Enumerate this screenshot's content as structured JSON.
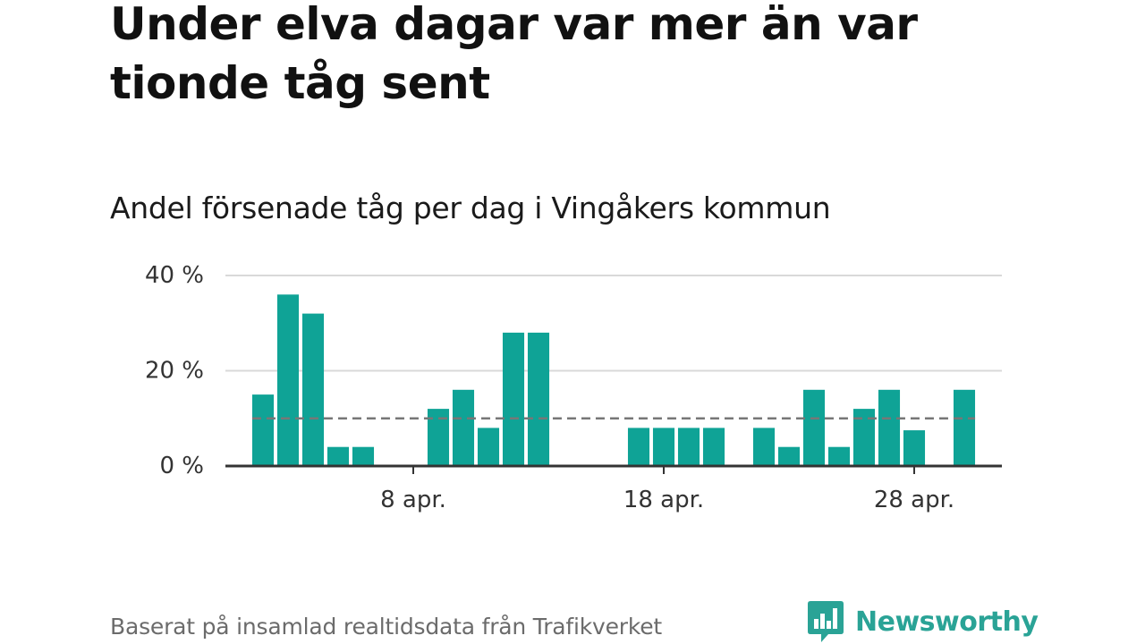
{
  "title": "Under elva dagar var mer än var tionde tåg sent",
  "subtitle": "Andel försenade tåg per dag i Vingåkers kommun",
  "footer": "Baserat på insamlad realtidsdata från Trafikverket",
  "brand": {
    "name": "Newsworthy",
    "icon": "bar-chart-speech-bubble-icon"
  },
  "colors": {
    "bar": "#0fa396",
    "grid": "#d9d9d9",
    "axis": "#333333",
    "reference": "#777777",
    "brand": "#2aa396"
  },
  "chart_data": {
    "type": "bar",
    "x": [
      2,
      3,
      4,
      5,
      6,
      7,
      8,
      9,
      10,
      11,
      12,
      13,
      14,
      15,
      16,
      17,
      18,
      19,
      20,
      21,
      22,
      23,
      24,
      25,
      26,
      27,
      28,
      29,
      30
    ],
    "values": [
      15,
      36,
      32,
      4,
      4,
      null,
      null,
      12,
      16,
      8,
      28,
      28,
      null,
      null,
      null,
      8,
      8,
      8,
      8,
      null,
      8,
      4,
      16,
      4,
      12,
      16,
      7.5,
      null,
      16
    ],
    "x_ticks": [
      {
        "x": 8,
        "label": "8 apr."
      },
      {
        "x": 18,
        "label": "18 apr."
      },
      {
        "x": 28,
        "label": "28 apr."
      }
    ],
    "y_ticks": [
      {
        "value": 0,
        "label": "0 %"
      },
      {
        "value": 20,
        "label": "20 %"
      },
      {
        "value": 40,
        "label": "40 %"
      }
    ],
    "ylim": [
      0,
      40
    ],
    "xlim": [
      0.5,
      31.5
    ],
    "reference_line": 10,
    "grid": true,
    "legend": false
  }
}
